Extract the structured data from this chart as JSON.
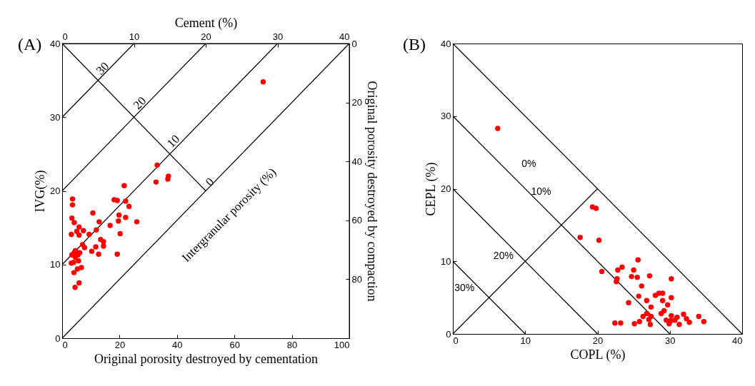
{
  "chart_data": [
    {
      "type": "scatter",
      "title": "(A)",
      "xlabel": "Original porosity destroyed by cementation",
      "ylabel": "IVG(%)",
      "x2label": "Cement (%)",
      "y2label": "Original porosity destroyed by compaction",
      "xlim": [
        0,
        100
      ],
      "xticks": [
        0,
        20,
        40,
        60,
        80,
        100
      ],
      "ylim": [
        0,
        40
      ],
      "yticks": [
        0,
        10,
        20,
        30,
        40
      ],
      "x2lim": [
        0,
        40
      ],
      "x2ticks": [
        0,
        10,
        20,
        30,
        40
      ],
      "y2lim": [
        100,
        0
      ],
      "y2ticks": [
        0,
        20,
        40,
        60,
        80
      ],
      "grid": false,
      "annotations": [
        "30",
        "20",
        "10",
        "0",
        "Intergranular porosity (%)"
      ],
      "series": [
        {
          "type": "line",
          "color": "#000000",
          "x": [
            0,
            50
          ],
          "values": [
            40,
            20
          ]
        },
        {
          "type": "line",
          "color": "#000000",
          "x": [
            0,
            25
          ],
          "values": [
            30,
            40
          ]
        },
        {
          "type": "line",
          "color": "#000000",
          "x": [
            0,
            50
          ],
          "values": [
            20,
            40
          ]
        },
        {
          "type": "line",
          "color": "#000000",
          "x": [
            0,
            75
          ],
          "values": [
            10,
            40
          ]
        },
        {
          "type": "line",
          "color": "#000000",
          "x": [
            0,
            100
          ],
          "values": [
            0,
            40
          ]
        },
        {
          "marker": "circle",
          "color": "#ff0000",
          "x": [
            3.6,
            3.6,
            21.6,
            32.7,
            37,
            36.8,
            18.1,
            19.2,
            22.1,
            23.3,
            10.7,
            3.4,
            4.2,
            19.8,
            22.1,
            19.6,
            12.9,
            26,
            16.7,
            5.9,
            7.4,
            5.1,
            11.9,
            3.2,
            5.9,
            9.4,
            20.2,
            13.4,
            14.4,
            14.4,
            7.1,
            7.8,
            11.7,
            10.3,
            4.6,
            4.2,
            6.1,
            3.4,
            5.5,
            12.7,
            19.2,
            4.6,
            3.2,
            5.7,
            4,
            4.1,
            5.3,
            6.7,
            5.9,
            4.5,
            70,
            33.1
          ],
          "values": [
            18.9,
            18.1,
            20.7,
            21.2,
            22,
            21.6,
            18.8,
            18.7,
            18.6,
            17.9,
            17,
            16.3,
            15.7,
            16.7,
            16.4,
            15.9,
            15.8,
            15.8,
            15.3,
            15.1,
            14.6,
            14.5,
            14.7,
            14.1,
            14,
            14.1,
            14.2,
            13.4,
            13.1,
            12.5,
            12.7,
            12.3,
            12.4,
            11.8,
            11.9,
            11.6,
            11.6,
            11.3,
            11.3,
            11.4,
            11.4,
            11,
            10.2,
            10.5,
            10.3,
            8.9,
            9.4,
            9.6,
            7.5,
            6.9,
            34.8,
            23.5
          ]
        }
      ]
    },
    {
      "type": "scatter",
      "title": "(B)",
      "xlabel": "COPL (%)",
      "ylabel": "CEPL (%)",
      "xlim": [
        0,
        40
      ],
      "xticks": [
        0,
        10,
        20,
        30,
        40
      ],
      "ylim": [
        0,
        40
      ],
      "yticks": [
        0,
        10,
        20,
        30,
        40
      ],
      "grid": false,
      "annotations": [
        "0%",
        "10%",
        "20%",
        "30%"
      ],
      "series": [
        {
          "type": "line",
          "color": "#000000",
          "x": [
            0,
            40
          ],
          "values": [
            40,
            0
          ]
        },
        {
          "type": "line",
          "color": "#000000",
          "x": [
            0,
            30
          ],
          "values": [
            30,
            0
          ]
        },
        {
          "type": "line",
          "color": "#000000",
          "x": [
            0,
            20
          ],
          "values": [
            20,
            0
          ]
        },
        {
          "type": "line",
          "color": "#000000",
          "x": [
            0,
            10
          ],
          "values": [
            10,
            0
          ]
        },
        {
          "type": "line",
          "color": "#000000",
          "x": [
            0,
            20
          ],
          "values": [
            0,
            20
          ]
        },
        {
          "marker": "circle",
          "color": "#ff0000",
          "x": [
            6.2,
            19.3,
            19.8,
            17.6,
            20.2,
            20.6,
            25.6,
            22.8,
            23.4,
            25,
            22.7,
            22.6,
            24.7,
            25.5,
            27.2,
            30.2,
            26.1,
            25.7,
            28,
            28.5,
            29,
            30.2,
            26.8,
            29,
            29.7,
            24.3,
            27.4,
            29.2,
            28.8,
            26.8,
            26.3,
            27.4,
            30.2,
            31,
            31.9,
            32.3,
            32.7,
            34,
            34.7,
            29.5,
            30.1,
            30.7,
            31.3,
            29.9,
            27.1,
            27.3,
            25.8,
            25.1,
            22.4,
            23.2
          ],
          "values": [
            28.3,
            17.5,
            17.3,
            13.3,
            12.9,
            8.6,
            10.2,
            8.8,
            9.2,
            8.8,
            7.6,
            7.2,
            7.9,
            7.8,
            8,
            7.6,
            6.6,
            5.2,
            5.3,
            5.6,
            5.6,
            5,
            4.6,
            4.6,
            4,
            4.3,
            3.7,
            3.2,
            2.8,
            2.8,
            2.4,
            2.4,
            2.5,
            2.3,
            2.7,
            2.1,
            1.6,
            2.4,
            1.7,
            1.9,
            1.8,
            1.9,
            1.3,
            1.4,
            2,
            1.3,
            1.7,
            1.4,
            1.5,
            1.5
          ]
        }
      ]
    }
  ]
}
